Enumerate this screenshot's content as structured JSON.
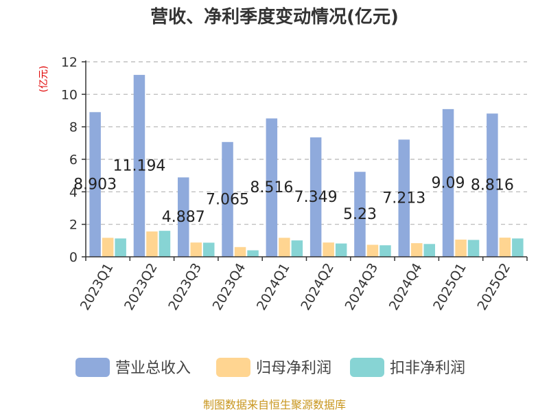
{
  "chart_data": {
    "type": "bar",
    "title": "营收、净利季度变动情况(亿元)",
    "ylabel": "(亿元)",
    "xlabel": "",
    "categories": [
      "2023Q1",
      "2023Q2",
      "2023Q3",
      "2023Q4",
      "2024Q1",
      "2024Q2",
      "2024Q3",
      "2024Q4",
      "2025Q1",
      "2025Q2"
    ],
    "ylim": [
      0,
      12
    ],
    "yticks": [
      0,
      2,
      4,
      6,
      8,
      10,
      12
    ],
    "grid": true,
    "legend_position": "bottom",
    "series": [
      {
        "name": "营业总收入",
        "color": "#8faadc",
        "values": [
          8.903,
          11.194,
          4.887,
          7.065,
          8.516,
          7.349,
          5.23,
          7.213,
          9.09,
          8.816
        ],
        "labels": [
          "8.903",
          "11.194",
          "4.887",
          "7.065",
          "8.516",
          "7.349",
          "5.23",
          "7.213",
          "9.09",
          "8.816"
        ]
      },
      {
        "name": "归母净利润",
        "color": "#ffd591",
        "values": [
          1.17,
          1.56,
          0.88,
          0.6,
          1.17,
          0.88,
          0.74,
          0.84,
          1.06,
          1.18
        ]
      },
      {
        "name": "扣非净利润",
        "color": "#87d4d4",
        "values": [
          1.13,
          1.6,
          0.87,
          0.4,
          1.01,
          0.82,
          0.71,
          0.79,
          1.04,
          1.13
        ]
      }
    ]
  },
  "footer": {
    "source": "制图数据来自恒生聚源数据库"
  }
}
